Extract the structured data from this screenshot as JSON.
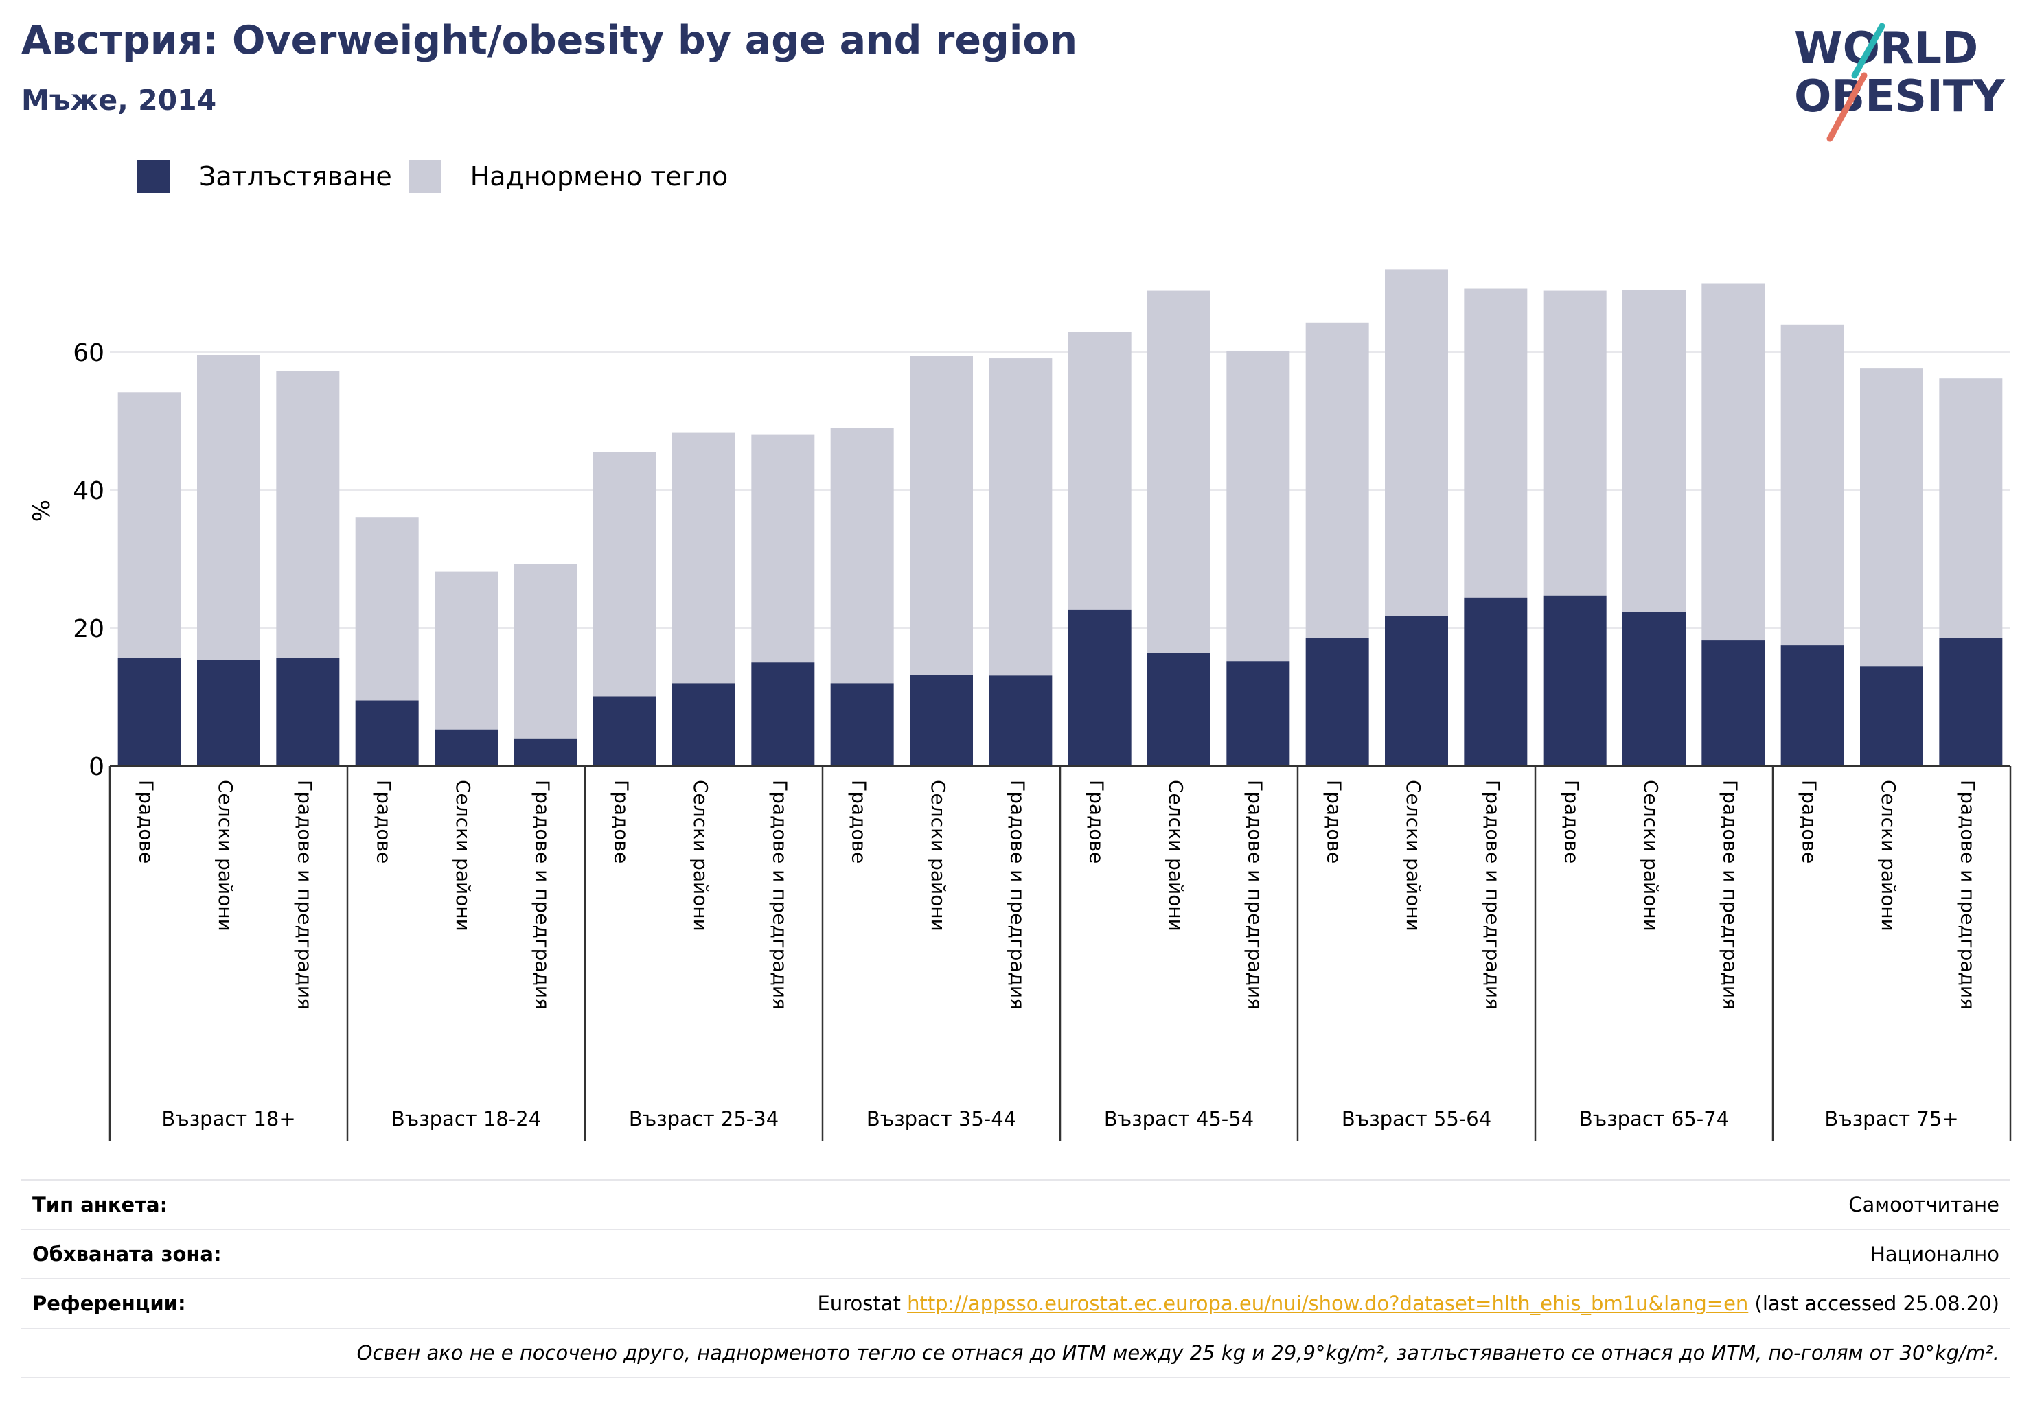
{
  "header": {
    "title": "Австрия: Overweight/obesity by age and region",
    "subtitle": "Мъже, 2014"
  },
  "logo": {
    "line1": "WORLD",
    "line2": "OBESITY"
  },
  "colors": {
    "obesity": "#2a3563",
    "overweight": "#cbccd8",
    "title": "#2a3563",
    "link": "#e6a817"
  },
  "chart_data": {
    "type": "bar",
    "stacked": true,
    "ylabel": "%",
    "ylim": [
      0,
      75
    ],
    "yticks": [
      0,
      20,
      40,
      60
    ],
    "grid": true,
    "legend_position": "top-left",
    "series": [
      {
        "name": "Затлъстяване",
        "values": [
          15.7,
          15.4,
          15.7,
          9.5,
          5.3,
          4.0,
          10.1,
          12.0,
          15.0,
          12.0,
          13.2,
          13.1,
          22.7,
          16.4,
          15.2,
          18.6,
          21.7,
          24.4,
          24.7,
          22.3,
          18.2,
          17.5,
          14.5,
          18.6
        ]
      },
      {
        "name": "Наднормено тегло",
        "values": [
          38.5,
          44.2,
          41.6,
          26.6,
          22.9,
          25.3,
          35.4,
          36.3,
          33.0,
          37.0,
          46.3,
          46.0,
          40.2,
          52.5,
          45.0,
          45.7,
          50.3,
          44.8,
          44.2,
          46.7,
          51.7,
          46.5,
          43.2,
          37.6
        ]
      }
    ],
    "categories": [
      "Градове",
      "Селски райони",
      "Градове и предградия",
      "Градове",
      "Селски райони",
      "Градове и предградия",
      "Градове",
      "Селски райони",
      "Градове и предградия",
      "Градове",
      "Селски райони",
      "Градове и предградия",
      "Градове",
      "Селски райони",
      "Градове и предградия",
      "Градове",
      "Селски райони",
      "Градове и предградия",
      "Градове",
      "Селски райони",
      "Градове и предградия",
      "Градове",
      "Селски райони",
      "Градове и предградия"
    ],
    "groups": [
      "Възраст 18+",
      "Възраст 18-24",
      "Възраст 25-34",
      "Възраст 35-44",
      "Възраст 45-54",
      "Възраст 55-64",
      "Възраст 65-74",
      "Възраст 75+"
    ]
  },
  "info": {
    "survey_label": "Тип анкета:",
    "survey_value": "Самоотчитане",
    "coverage_label": "Обхваната зона:",
    "coverage_value": "Национално",
    "refs_label": "Референции:",
    "refs_prefix": "Eurostat ",
    "refs_link": "http://appsso.eurostat.ec.europa.eu/nui/show.do?dataset=hlth_ehis_bm1u&lang=en",
    "refs_suffix": " (last accessed 25.08.20)",
    "note": "Освен ако не е посочено друго, наднорменото тегло се отнася до ИТМ между 25 kg и 29,9°kg/m², затлъстяването се отнася до ИТМ, по-голям от 30°kg/m²."
  }
}
